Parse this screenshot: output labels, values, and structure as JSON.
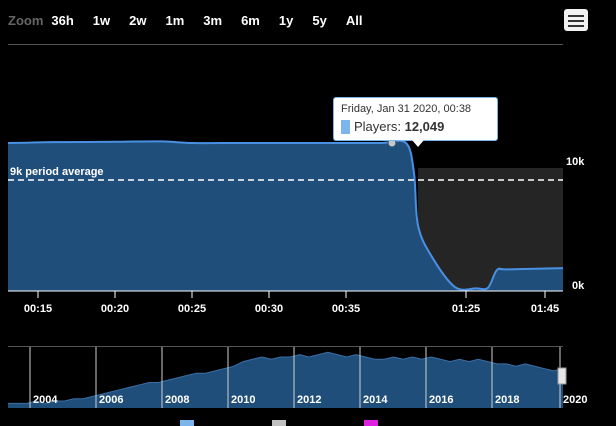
{
  "toolbar": {
    "zoom_label": "Zoom",
    "zoom_options": [
      "36h",
      "1w",
      "2w",
      "1m",
      "3m",
      "6m",
      "1y",
      "5y",
      "All"
    ]
  },
  "chart_data": {
    "type": "area",
    "series": [
      {
        "name": "Players",
        "color": "#1f4e7a",
        "line_color": "#4a90e2",
        "points": [
          {
            "t": "00:10",
            "v": 11300
          },
          {
            "t": "00:13",
            "v": 11320
          },
          {
            "t": "00:16",
            "v": 11360
          },
          {
            "t": "00:20",
            "v": 11390
          },
          {
            "t": "00:23",
            "v": 11420
          },
          {
            "t": "00:25",
            "v": 11480
          },
          {
            "t": "00:28",
            "v": 11560
          },
          {
            "t": "00:30",
            "v": 11640
          },
          {
            "t": "00:33",
            "v": 11660
          },
          {
            "t": "00:36",
            "v": 11680
          },
          {
            "t": "00:38",
            "v": 12049
          },
          {
            "t": "00:40",
            "v": 11600
          },
          {
            "t": "00:41",
            "v": 9000
          },
          {
            "t": "00:42",
            "v": 5000
          },
          {
            "t": "01:15",
            "v": 2600
          },
          {
            "t": "01:25",
            "v": 300
          },
          {
            "t": "01:30",
            "v": 200
          },
          {
            "t": "01:33",
            "v": 250
          },
          {
            "t": "01:35",
            "v": 1600
          },
          {
            "t": "01:40",
            "v": 1650
          },
          {
            "t": "01:47",
            "v": 1750
          }
        ]
      }
    ],
    "x_ticks": [
      "00:15",
      "00:20",
      "00:25",
      "00:30",
      "00:35",
      "01:25",
      "01:45"
    ],
    "y_ticks": [
      "10k",
      "0k"
    ],
    "ylim": [
      0,
      10000
    ],
    "plot_lines": [
      {
        "value": 9000,
        "label": "9k period average"
      }
    ],
    "tooltip": {
      "date": "Friday, Jan 31 2020, 00:38",
      "series_label": "Players",
      "value_text": "12,049"
    },
    "navigator": {
      "type": "area",
      "x_labels": [
        "2004",
        "2006",
        "2008",
        "2010",
        "2012",
        "2014",
        "2016",
        "2018",
        "2020"
      ],
      "values": [
        2,
        2,
        2,
        3,
        2,
        3,
        3,
        4,
        4,
        5,
        6,
        7,
        8,
        9,
        10,
        11,
        11,
        12,
        13,
        14,
        15,
        15,
        16,
        17,
        18,
        20,
        21,
        22,
        21,
        22,
        22,
        23,
        22,
        23,
        24,
        23,
        22,
        23,
        22,
        21,
        21,
        22,
        21,
        22,
        21,
        22,
        21,
        20,
        21,
        20,
        21,
        20,
        19,
        19,
        18,
        19,
        18,
        17,
        16,
        17
      ]
    },
    "colors": {
      "series_fill": "#1f4e7a",
      "series_line": "#4a90e2",
      "dark_area": "#252525",
      "axis": "#ffffff",
      "tooltip_border": "#7cb5ec"
    }
  }
}
